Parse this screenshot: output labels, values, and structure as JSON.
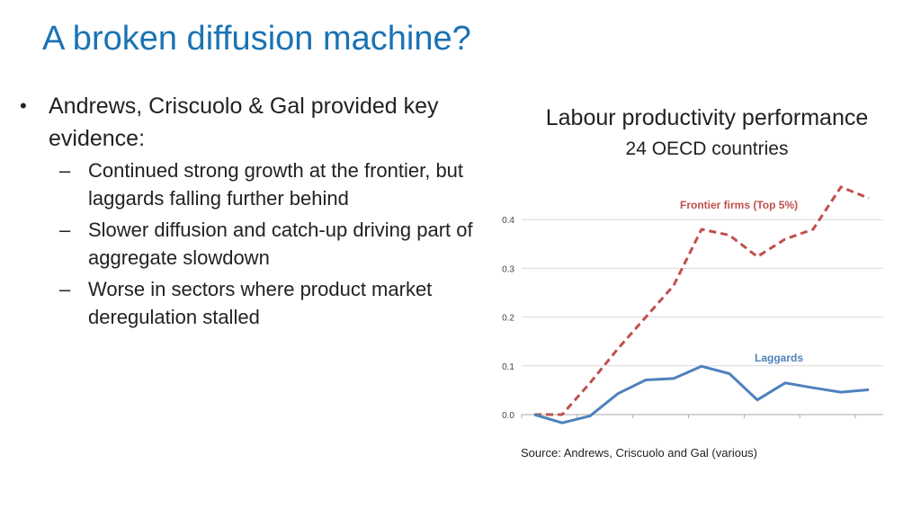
{
  "slide": {
    "title": "A broken diffusion machine?",
    "bullet_main": "Andrews, Criscuolo & Gal provided key evidence:",
    "bullet_marker": "•",
    "sub_marker": "–",
    "sub_bullets": [
      "Continued strong growth at the frontier, but laggards falling further behind",
      "Slower diffusion and catch-up driving part of aggregate slowdown",
      "Worse in sectors where product market deregulation stalled"
    ],
    "source": "Source: Andrews, Criscuolo and Gal (various)"
  },
  "chart_data": {
    "type": "line",
    "title": "Labour productivity performance",
    "subtitle": "24 OECD countries",
    "xlabel": "",
    "ylabel": "",
    "x": [
      0,
      1,
      2,
      3,
      4,
      5,
      6,
      7,
      8,
      9,
      10,
      11,
      12
    ],
    "ylim": [
      0.0,
      0.5
    ],
    "yticks": [
      "0.0",
      "0.1",
      "0.2",
      "0.3",
      "0.4"
    ],
    "grid": true,
    "legend": "inline labels",
    "series": [
      {
        "name": "Frontier firms (Top 5%)",
        "color": "#c0504d",
        "style": "dashed",
        "values": [
          0.0,
          0.0,
          0.065,
          0.135,
          0.2,
          0.265,
          0.38,
          0.368,
          0.324,
          0.36,
          0.38,
          0.467,
          0.444
        ]
      },
      {
        "name": "Laggards",
        "color": "#4f81bd",
        "style": "solid",
        "values": [
          0.0,
          -0.017,
          -0.003,
          0.043,
          0.071,
          0.074,
          0.099,
          0.084,
          0.03,
          0.065,
          0.055,
          0.046,
          0.051
        ]
      }
    ]
  }
}
